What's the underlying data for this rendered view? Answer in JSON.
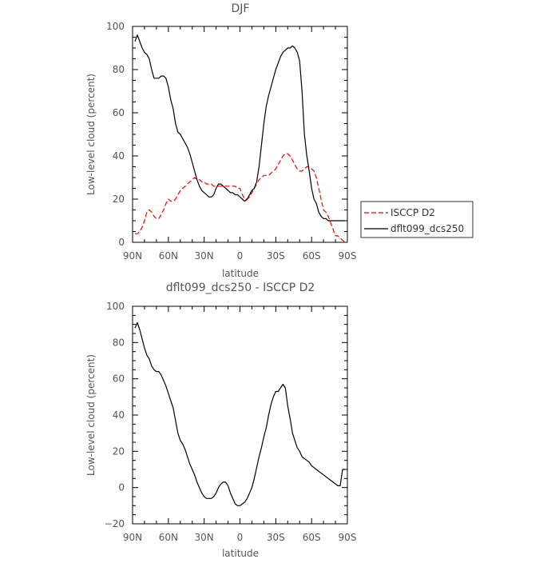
{
  "chart_data": [
    {
      "type": "line",
      "title": "DJF",
      "xlabel": "latitude",
      "ylabel": "Low-level cloud (percent)",
      "xlim": [
        90,
        -90
      ],
      "ylim": [
        0,
        100
      ],
      "x_tick_values": [
        90,
        60,
        30,
        0,
        -30,
        -60,
        -90
      ],
      "x_tick_labels": [
        "90N",
        "60N",
        "30N",
        "0",
        "30S",
        "60S",
        "90S"
      ],
      "y_tick_values": [
        0,
        20,
        40,
        60,
        80,
        100
      ],
      "y_tick_labels": [
        "0",
        "20",
        "40",
        "60",
        "80",
        "100"
      ],
      "legend_position": "right",
      "series": [
        {
          "name": "ISCCP D2",
          "color": "#ff0000",
          "dash": "dashed",
          "x": [
            88,
            86,
            84,
            82,
            80,
            78,
            76,
            74,
            72,
            70,
            68,
            66,
            64,
            62,
            60,
            58,
            56,
            54,
            52,
            50,
            48,
            46,
            44,
            42,
            40,
            38,
            36,
            34,
            32,
            30,
            28,
            26,
            24,
            22,
            20,
            18,
            16,
            14,
            12,
            10,
            8,
            6,
            4,
            2,
            0,
            -2,
            -4,
            -6,
            -8,
            -10,
            -12,
            -14,
            -16,
            -18,
            -20,
            -22,
            -24,
            -26,
            -28,
            -30,
            -32,
            -34,
            -36,
            -38,
            -40,
            -42,
            -44,
            -46,
            -48,
            -50,
            -52,
            -54,
            -56,
            -58,
            -60,
            -62,
            -64,
            -66,
            -68,
            -70,
            -72,
            -74,
            -76,
            -78,
            -80,
            -82,
            -84,
            -86,
            -88
          ],
          "values": [
            4,
            4,
            5,
            7,
            10,
            14,
            15,
            14,
            12,
            11,
            11,
            13,
            15,
            18,
            20,
            19,
            19,
            20,
            22,
            24,
            25,
            26,
            27,
            28,
            29,
            30,
            29,
            29,
            28,
            28,
            27,
            27,
            27,
            26,
            26,
            26,
            26,
            26,
            26,
            26,
            26,
            26,
            26,
            25,
            25,
            22,
            20,
            20,
            21,
            23,
            25,
            27,
            29,
            30,
            31,
            31,
            31,
            32,
            33,
            34,
            36,
            38,
            40,
            41,
            41,
            40,
            38,
            36,
            34,
            33,
            33,
            34,
            35,
            35,
            34,
            33,
            30,
            25,
            20,
            15,
            14,
            12,
            9,
            6,
            3,
            3,
            2,
            1,
            0
          ]
        },
        {
          "name": "dflt099_dcs250",
          "color": "#000000",
          "dash": "solid",
          "x": [
            88,
            86,
            84,
            82,
            80,
            78,
            76,
            74,
            72,
            70,
            68,
            66,
            64,
            62,
            60,
            58,
            56,
            54,
            52,
            50,
            48,
            46,
            44,
            42,
            40,
            38,
            36,
            34,
            32,
            30,
            28,
            26,
            24,
            22,
            20,
            18,
            16,
            14,
            12,
            10,
            8,
            6,
            4,
            2,
            0,
            -2,
            -4,
            -6,
            -8,
            -10,
            -12,
            -14,
            -16,
            -18,
            -20,
            -22,
            -24,
            -26,
            -28,
            -30,
            -32,
            -34,
            -36,
            -38,
            -40,
            -42,
            -44,
            -46,
            -48,
            -50,
            -52,
            -54,
            -56,
            -58,
            -60,
            -62,
            -64,
            -66,
            -68,
            -70,
            -72,
            -74,
            -76,
            -78,
            -80,
            -82,
            -84,
            -86,
            -88
          ],
          "values": [
            93,
            96,
            93,
            90,
            88,
            87,
            85,
            80,
            76,
            76,
            76,
            77,
            77,
            76,
            72,
            66,
            62,
            55,
            51,
            50,
            48,
            46,
            44,
            41,
            37,
            33,
            29,
            26,
            24,
            23,
            22,
            21,
            21,
            22,
            25,
            27,
            27,
            26,
            25,
            24,
            23,
            23,
            22,
            22,
            21,
            20,
            19,
            20,
            22,
            24,
            25,
            28,
            35,
            45,
            55,
            63,
            68,
            72,
            76,
            80,
            83,
            86,
            88,
            89,
            90,
            90,
            91,
            90,
            88,
            84,
            70,
            50,
            40,
            33,
            25,
            20,
            18,
            14,
            12,
            11,
            11,
            10,
            10,
            10,
            10,
            10,
            10,
            10,
            10
          ]
        }
      ]
    },
    {
      "type": "line",
      "title": "dflt099_dcs250 - ISCCP D2",
      "xlabel": "latitude",
      "ylabel": "Low-level cloud (percent)",
      "xlim": [
        90,
        -90
      ],
      "ylim": [
        -20,
        100
      ],
      "x_tick_values": [
        90,
        60,
        30,
        0,
        -30,
        -60,
        -90
      ],
      "x_tick_labels": [
        "90N",
        "60N",
        "30N",
        "0",
        "30S",
        "60S",
        "90S"
      ],
      "y_tick_values": [
        -20,
        0,
        20,
        40,
        60,
        80,
        100
      ],
      "y_tick_labels": [
        "−20",
        "0",
        "20",
        "40",
        "60",
        "80",
        "100"
      ],
      "series": [
        {
          "color": "#000000",
          "dash": "solid",
          "x": [
            88,
            86,
            84,
            82,
            80,
            78,
            76,
            74,
            72,
            70,
            68,
            66,
            64,
            62,
            60,
            58,
            56,
            54,
            52,
            50,
            48,
            46,
            44,
            42,
            40,
            38,
            36,
            34,
            32,
            30,
            28,
            26,
            24,
            22,
            20,
            18,
            16,
            14,
            12,
            10,
            8,
            6,
            4,
            2,
            0,
            -2,
            -4,
            -6,
            -8,
            -10,
            -12,
            -14,
            -16,
            -18,
            -20,
            -22,
            -24,
            -26,
            -28,
            -30,
            -32,
            -34,
            -36,
            -38,
            -40,
            -42,
            -44,
            -46,
            -48,
            -50,
            -52,
            -54,
            -56,
            -58,
            -60,
            -62,
            -64,
            -66,
            -68,
            -70,
            -72,
            -74,
            -76,
            -78,
            -80,
            -82,
            -84,
            -86,
            -88
          ],
          "values": [
            88,
            91,
            87,
            82,
            77,
            73,
            71,
            67,
            65,
            64,
            64,
            62,
            59,
            56,
            52,
            48,
            44,
            37,
            30,
            26,
            24,
            21,
            17,
            13,
            10,
            7,
            3,
            0,
            -3,
            -5,
            -6,
            -6,
            -6,
            -5,
            -3,
            0,
            2,
            3,
            3,
            1,
            -3,
            -6,
            -9,
            -10,
            -10,
            -9,
            -8,
            -6,
            -3,
            0,
            5,
            11,
            17,
            22,
            28,
            33,
            40,
            46,
            50,
            53,
            53,
            55,
            57,
            55,
            45,
            38,
            30,
            26,
            22,
            20,
            17,
            16,
            15,
            14,
            12,
            11,
            10,
            9,
            8,
            7,
            6,
            5,
            4,
            3,
            2,
            1,
            1,
            10,
            10
          ]
        }
      ]
    }
  ]
}
